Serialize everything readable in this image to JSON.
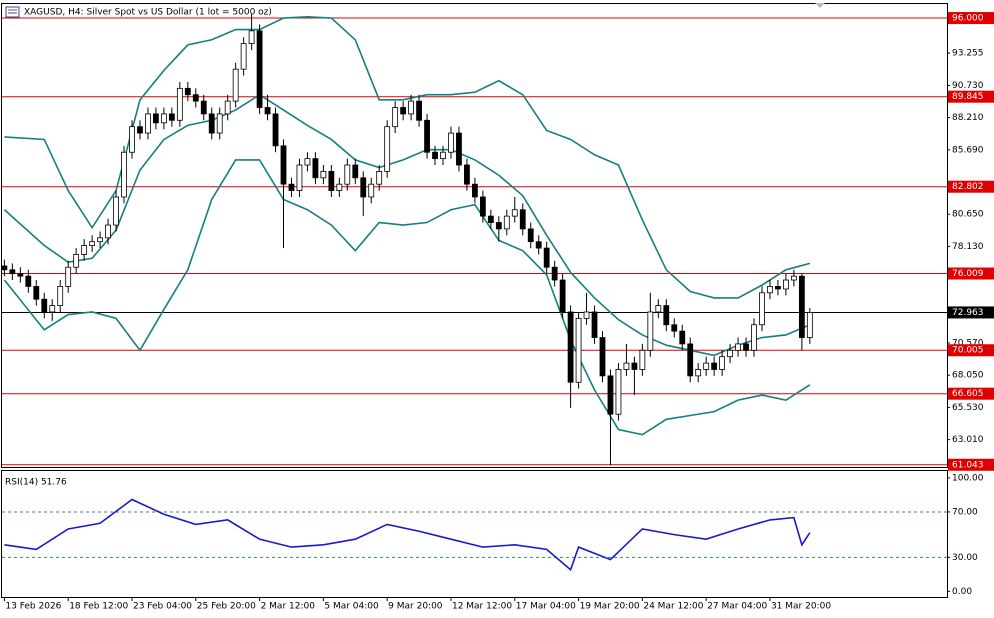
{
  "chart_data": [
    {
      "type": "candlestick",
      "title": "XAGUSD, H4:  Silver Spot vs US Dollar (1 lot = 5000 oz)",
      "up_color": "#ffffff",
      "down_color": "#000000",
      "outline_color": "#000000",
      "ohlc": [
        [
          76.6,
          77.1,
          75.8,
          76.3
        ],
        [
          76.3,
          76.8,
          75.5,
          76.0
        ],
        [
          76.0,
          76.5,
          75.3,
          75.8
        ],
        [
          75.8,
          76.3,
          74.5,
          75.0
        ],
        [
          75.0,
          75.5,
          73.5,
          74.0
        ],
        [
          74.0,
          74.5,
          72.5,
          73.0
        ],
        [
          73.0,
          74.0,
          72.3,
          73.5
        ],
        [
          73.5,
          75.5,
          73.0,
          75.0
        ],
        [
          75.0,
          77.0,
          74.5,
          76.5
        ],
        [
          76.5,
          78.0,
          76.0,
          77.5
        ],
        [
          77.5,
          78.7,
          77.0,
          78.2
        ],
        [
          78.2,
          79.0,
          77.7,
          78.5
        ],
        [
          78.5,
          79.3,
          78.0,
          78.8
        ],
        [
          78.8,
          80.3,
          78.3,
          79.8
        ],
        [
          79.8,
          82.5,
          79.3,
          82.0
        ],
        [
          82.0,
          86.0,
          81.5,
          85.5
        ],
        [
          85.5,
          88.0,
          85.0,
          87.5
        ],
        [
          87.5,
          88.0,
          86.5,
          87.0
        ],
        [
          87.0,
          89.0,
          86.5,
          88.5
        ],
        [
          88.5,
          89.0,
          87.3,
          87.8
        ],
        [
          87.8,
          89.0,
          87.3,
          88.5
        ],
        [
          88.5,
          89.0,
          87.5,
          88.0
        ],
        [
          88.0,
          91.0,
          87.5,
          90.5
        ],
        [
          90.5,
          91.0,
          89.5,
          90.0
        ],
        [
          90.0,
          90.5,
          89.0,
          89.5
        ],
        [
          89.5,
          90.0,
          88.0,
          88.5
        ],
        [
          88.5,
          89.0,
          86.5,
          87.0
        ],
        [
          87.0,
          89.0,
          86.5,
          88.5
        ],
        [
          88.5,
          90.0,
          88.0,
          89.5
        ],
        [
          89.5,
          92.5,
          89.0,
          92.0
        ],
        [
          92.0,
          94.5,
          91.5,
          94.0
        ],
        [
          94.0,
          96.3,
          93.5,
          95.0
        ],
        [
          95.0,
          95.5,
          88.5,
          89.0
        ],
        [
          89.0,
          90.0,
          88.0,
          88.5
        ],
        [
          88.5,
          89.0,
          85.5,
          86.0
        ],
        [
          86.0,
          86.5,
          78.0,
          83.0
        ],
        [
          83.0,
          83.5,
          82.0,
          82.5
        ],
        [
          82.5,
          85.0,
          82.0,
          84.5
        ],
        [
          84.5,
          85.5,
          84.0,
          85.0
        ],
        [
          85.0,
          85.5,
          83.0,
          83.5
        ],
        [
          83.5,
          84.5,
          83.0,
          84.0
        ],
        [
          84.0,
          84.5,
          82.0,
          82.5
        ],
        [
          82.5,
          83.5,
          82.0,
          83.0
        ],
        [
          83.0,
          85.0,
          82.5,
          84.5
        ],
        [
          84.5,
          85.0,
          83.0,
          83.5
        ],
        [
          83.5,
          84.0,
          80.5,
          82.0
        ],
        [
          82.0,
          83.5,
          81.5,
          83.0
        ],
        [
          83.0,
          84.5,
          82.5,
          84.0
        ],
        [
          84.0,
          88.0,
          83.5,
          87.5
        ],
        [
          87.5,
          89.5,
          87.0,
          89.0
        ],
        [
          89.0,
          89.5,
          88.0,
          88.5
        ],
        [
          88.5,
          90.0,
          88.0,
          89.5
        ],
        [
          89.5,
          90.0,
          87.5,
          88.0
        ],
        [
          88.0,
          88.5,
          85.0,
          85.5
        ],
        [
          85.5,
          86.0,
          84.5,
          85.0
        ],
        [
          85.0,
          86.0,
          84.5,
          85.5
        ],
        [
          85.5,
          87.5,
          85.0,
          87.0
        ],
        [
          87.0,
          87.5,
          84.0,
          84.5
        ],
        [
          84.5,
          85.0,
          82.5,
          83.0
        ],
        [
          83.0,
          83.5,
          81.5,
          82.0
        ],
        [
          82.0,
          82.5,
          80.0,
          80.5
        ],
        [
          80.5,
          81.0,
          79.5,
          80.0
        ],
        [
          80.0,
          80.5,
          78.5,
          79.5
        ],
        [
          79.5,
          81.0,
          79.0,
          80.5
        ],
        [
          80.5,
          82.0,
          80.0,
          81.0
        ],
        [
          81.0,
          81.5,
          79.0,
          79.5
        ],
        [
          79.5,
          80.0,
          78.0,
          78.5
        ],
        [
          78.5,
          79.0,
          77.5,
          78.0
        ],
        [
          78.0,
          78.5,
          76.0,
          76.5
        ],
        [
          76.5,
          77.0,
          75.0,
          75.5
        ],
        [
          75.5,
          76.0,
          72.5,
          73.0
        ],
        [
          73.0,
          73.5,
          65.5,
          67.5
        ],
        [
          67.5,
          73.0,
          67.0,
          72.5
        ],
        [
          72.5,
          74.5,
          72.0,
          73.0
        ],
        [
          73.0,
          73.5,
          70.5,
          71.0
        ],
        [
          71.0,
          71.5,
          67.5,
          68.0
        ],
        [
          68.0,
          68.5,
          61.0,
          65.0
        ],
        [
          65.0,
          69.0,
          64.5,
          68.5
        ],
        [
          68.5,
          70.5,
          68.0,
          69.0
        ],
        [
          69.0,
          69.5,
          66.5,
          68.5
        ],
        [
          68.5,
          70.5,
          68.0,
          70.0
        ],
        [
          70.0,
          74.5,
          69.5,
          73.0
        ],
        [
          73.0,
          74.0,
          72.5,
          73.5
        ],
        [
          73.5,
          74.0,
          71.5,
          72.0
        ],
        [
          72.0,
          72.5,
          71.0,
          71.5
        ],
        [
          71.5,
          72.0,
          70.0,
          70.5
        ],
        [
          70.5,
          71.0,
          67.5,
          68.0
        ],
        [
          68.0,
          69.0,
          67.5,
          68.5
        ],
        [
          68.5,
          69.5,
          68.0,
          69.0
        ],
        [
          69.0,
          69.5,
          68.0,
          68.5
        ],
        [
          68.5,
          70.0,
          68.0,
          69.5
        ],
        [
          69.5,
          70.5,
          69.0,
          70.0
        ],
        [
          70.0,
          71.0,
          69.5,
          70.5
        ],
        [
          70.5,
          71.0,
          69.5,
          70.0
        ],
        [
          70.0,
          72.5,
          69.5,
          72.0
        ],
        [
          72.0,
          75.0,
          71.5,
          74.5
        ],
        [
          74.5,
          75.5,
          74.0,
          75.0
        ],
        [
          75.0,
          75.5,
          74.3,
          74.8
        ],
        [
          74.8,
          76.0,
          74.3,
          75.5
        ],
        [
          75.5,
          76.3,
          75.0,
          75.8
        ],
        [
          75.8,
          76.0,
          70.0,
          71.0
        ],
        [
          71.0,
          73.3,
          70.5,
          72.963
        ]
      ],
      "series": [
        {
          "color": "#138080",
          "x": [
            0,
            5,
            8,
            11,
            14,
            17,
            20,
            23,
            26,
            29,
            32,
            35,
            38,
            41,
            44,
            47,
            50,
            53,
            56,
            59,
            62,
            65,
            68,
            71,
            74,
            77,
            80,
            83,
            86,
            89,
            92,
            95,
            98,
            101
          ],
          "values": [
            86.7,
            86.5,
            82.5,
            79.6,
            82.5,
            89.6,
            91.9,
            93.9,
            94.3,
            95.1,
            95.1,
            96.0,
            96.1,
            96.0,
            94.3,
            89.6,
            89.6,
            90.0,
            90.0,
            90.2,
            91.1,
            90.0,
            87.2,
            86.5,
            85.3,
            84.5,
            80.2,
            76.3,
            74.6,
            74.1,
            74.1,
            75.1,
            76.3,
            76.8
          ]
        },
        {
          "color": "#138080",
          "x": [
            0,
            5,
            8,
            11,
            14,
            17,
            20,
            23,
            26,
            29,
            32,
            35,
            38,
            41,
            44,
            47,
            50,
            53,
            56,
            59,
            62,
            65,
            68,
            71,
            74,
            77,
            80,
            83,
            86,
            89,
            92,
            95,
            98,
            101
          ],
          "values": [
            81.0,
            78.2,
            76.9,
            77.2,
            79.4,
            84.1,
            86.5,
            87.6,
            88.0,
            88.8,
            90.0,
            88.8,
            87.6,
            86.5,
            84.9,
            84.3,
            84.9,
            85.7,
            85.7,
            84.9,
            83.7,
            82.1,
            79.0,
            76.1,
            74.1,
            72.4,
            71.2,
            70.4,
            70.0,
            69.6,
            70.4,
            71.0,
            71.2,
            72.0
          ]
        },
        {
          "color": "#138080",
          "x": [
            0,
            5,
            8,
            11,
            14,
            17,
            20,
            23,
            26,
            29,
            32,
            35,
            38,
            41,
            44,
            47,
            50,
            53,
            56,
            59,
            62,
            65,
            68,
            71,
            74,
            77,
            80,
            83,
            86,
            89,
            92,
            95,
            98,
            101
          ],
          "values": [
            75.5,
            71.6,
            72.8,
            73.0,
            72.5,
            70.0,
            73.2,
            76.3,
            81.8,
            84.9,
            84.9,
            81.8,
            81.0,
            79.8,
            77.8,
            80.0,
            79.8,
            80.0,
            81.0,
            81.4,
            78.6,
            77.8,
            75.9,
            70.8,
            66.9,
            63.8,
            63.4,
            64.6,
            64.9,
            65.2,
            66.1,
            66.5,
            66.1,
            67.3
          ]
        }
      ],
      "xlim": [
        -0.3,
        118.2
      ],
      "ylim": [
        60.79,
        97.1
      ],
      "xticks": [
        {
          "value": 0,
          "label": "13 Feb 2026"
        },
        {
          "value": 8,
          "label": "18 Feb 12:00"
        },
        {
          "value": 16,
          "label": "23 Feb 04:00"
        },
        {
          "value": 24,
          "label": "25 Feb 20:00"
        },
        {
          "value": 32,
          "label": "2 Mar 12:00"
        },
        {
          "value": 40,
          "label": "5 Mar 04:00"
        },
        {
          "value": 48,
          "label": "9 Mar 20:00"
        },
        {
          "value": 56,
          "label": "12 Mar 12:00"
        },
        {
          "value": 64,
          "label": "17 Mar 04:00"
        },
        {
          "value": 72,
          "label": "19 Mar 20:00"
        },
        {
          "value": 80,
          "label": "24 Mar 12:00"
        },
        {
          "value": 88,
          "label": "27 Mar 04:00"
        },
        {
          "value": 96,
          "label": "31 Mar 20:00"
        }
      ],
      "yticks": [
        {
          "value": 93.255,
          "label": "93.255"
        },
        {
          "value": 90.73,
          "label": "90.730"
        },
        {
          "value": 88.21,
          "label": "88.210"
        },
        {
          "value": 85.69,
          "label": "85.690"
        },
        {
          "value": 80.65,
          "label": "80.650"
        },
        {
          "value": 78.13,
          "label": "78.130"
        },
        {
          "value": 70.57,
          "label": "70.570"
        },
        {
          "value": 68.05,
          "label": "68.050"
        },
        {
          "value": 65.53,
          "label": "65.530"
        },
        {
          "value": 63.01,
          "label": "63.010"
        }
      ],
      "levels": [
        {
          "value": 96,
          "label": "96.000",
          "color": "#e00000"
        },
        {
          "value": 89.845,
          "label": "89.845",
          "color": "#e00000"
        },
        {
          "value": 82.802,
          "label": "82.802",
          "color": "#e00000"
        },
        {
          "value": 76.009,
          "label": "76.009",
          "color": "#e00000"
        },
        {
          "value": 70.005,
          "label": "70.005",
          "color": "#e00000"
        },
        {
          "value": 66.605,
          "label": "66.605",
          "color": "#e00000"
        },
        {
          "value": 61.043,
          "label": "61.043",
          "color": "#e00000"
        },
        {
          "value": 72.963,
          "label": "72.963",
          "color": "#000000"
        }
      ]
    },
    {
      "type": "line",
      "title": "RSI(14) 51.76",
      "series": [
        {
          "color": "#1a1acc",
          "x": [
            0,
            4,
            8,
            12,
            16,
            20,
            24,
            28,
            32,
            36,
            40,
            44,
            48,
            52,
            56,
            60,
            64,
            68,
            71,
            72,
            76,
            80,
            84,
            88,
            92,
            96,
            99,
            100,
            101
          ],
          "values": [
            41,
            37,
            55,
            60,
            81,
            68,
            59,
            63,
            46,
            39,
            41,
            46,
            59,
            53,
            46,
            39,
            41,
            37,
            19,
            39,
            28,
            55,
            50,
            46,
            55,
            63,
            65,
            41,
            51.76
          ]
        }
      ],
      "xlim": [
        -0.3,
        118.2
      ],
      "ylim": [
        -5,
        107
      ],
      "yticks": [
        {
          "value": 100,
          "label": "100.00"
        },
        {
          "value": 70,
          "label": "70.00"
        },
        {
          "value": 30,
          "label": "30.00"
        },
        {
          "value": 0,
          "label": "0.00"
        }
      ],
      "levels": [
        70,
        30
      ],
      "level_color": "#2e8b57"
    }
  ]
}
